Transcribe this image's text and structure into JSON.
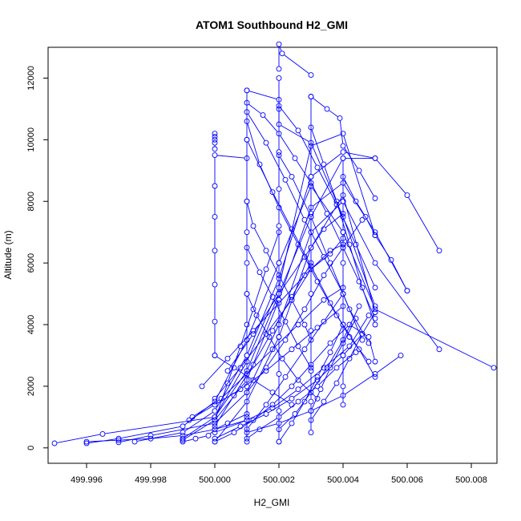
{
  "chart_data": {
    "type": "line",
    "title": "ATOM1 Southbound H2_GMI",
    "xlabel": "H2_GMI",
    "ylabel": "Altitude (m)",
    "xlim": [
      499.9948,
      500.0088
    ],
    "ylim": [
      -500,
      13000
    ],
    "x_ticks": [
      499.996,
      499.998,
      500.0,
      500.002,
      500.004,
      500.006,
      500.008
    ],
    "x_tick_labels": [
      "499.996",
      "499.998",
      "500.000",
      "500.002",
      "500.004",
      "500.006",
      "500.008"
    ],
    "y_ticks": [
      0,
      2000,
      4000,
      6000,
      8000,
      10000,
      12000
    ],
    "y_tick_labels": [
      "0",
      "2000",
      "4000",
      "6000",
      "8000",
      "10000",
      "12000"
    ],
    "grid": false,
    "line_color": "#0000ff",
    "marker": "open-circle",
    "series": [
      {
        "x": [
          499.995,
          499.9965,
          500.0,
          500.001,
          500.002,
          500.003,
          500.004,
          500.005,
          500.006,
          500.007
        ],
        "y": [
          150,
          450,
          1000,
          2500,
          5000,
          7500,
          9400,
          9400,
          8200,
          6400
        ]
      },
      {
        "x": [
          499.996,
          499.997,
          499.999,
          500.0,
          500.001,
          500.002,
          500.003,
          500.004,
          500.005,
          500.0087
        ],
        "y": [
          150,
          300,
          700,
          1500,
          3500,
          6000,
          8500,
          7000,
          4500,
          2600
        ]
      },
      {
        "x": [
          499.997,
          499.998,
          500.0,
          500.001,
          500.002,
          500.003,
          500.004,
          500.005,
          500.007
        ],
        "y": [
          180,
          400,
          800,
          1800,
          4000,
          7000,
          8000,
          6000,
          3200
        ]
      },
      {
        "x": [
          499.9975,
          499.999,
          500.0,
          500.001,
          500.002,
          500.003,
          500.004,
          500.005
        ],
        "y": [
          200,
          500,
          1200,
          3000,
          5500,
          8800,
          9600,
          9400
        ]
      },
      {
        "x": [
          499.999,
          500.0,
          500.001,
          500.002,
          500.003,
          500.004,
          500.005,
          500.006
        ],
        "y": [
          250,
          900,
          2200,
          4800,
          7800,
          8600,
          7000,
          5100
        ]
      },
      {
        "x": [
          499.999,
          500.0,
          500.001,
          500.002,
          500.003,
          500.004,
          500.005
        ],
        "y": [
          300,
          1000,
          2800,
          5200,
          9800,
          10200,
          6900
        ]
      },
      {
        "x": [
          500.0,
          500.001,
          500.002,
          500.003,
          500.004,
          500.005
        ],
        "y": [
          200,
          1500,
          3600,
          6500,
          8200,
          4400
        ]
      },
      {
        "x": [
          500.0,
          500.0,
          500.0,
          500.0,
          500.0,
          500.0,
          500.0,
          500.001
        ],
        "y": [
          3000,
          4100,
          5300,
          6400,
          7500,
          8500,
          9500,
          9400
        ]
      },
      {
        "x": [
          500.0,
          500.0,
          500.0,
          500.0,
          500.0
        ],
        "y": [
          9700,
          9900,
          10000,
          10100,
          10200
        ]
      },
      {
        "x": [
          500.001,
          500.001,
          500.001,
          500.001,
          500.001,
          500.001,
          500.001,
          500.001,
          500.001,
          500.001,
          500.001
        ],
        "y": [
          200,
          1000,
          2000,
          3000,
          4000,
          5000,
          6000,
          7000,
          8000,
          10000,
          11600
        ]
      },
      {
        "x": [
          500.001,
          500.002,
          500.002,
          500.003,
          500.004,
          500.005
        ],
        "y": [
          11600,
          11300,
          10500,
          9900,
          7500,
          4600
        ]
      },
      {
        "x": [
          500.002,
          500.002,
          500.002,
          500.002,
          500.002,
          500.002,
          500.002,
          500.002,
          500.002,
          500.002,
          500.002
        ],
        "y": [
          200,
          1200,
          2400,
          3600,
          4800,
          6000,
          7200,
          8400,
          9600,
          11000,
          12000
        ]
      },
      {
        "x": [
          500.002,
          500.002,
          500.0021,
          500.003
        ],
        "y": [
          12300,
          13100,
          12800,
          12100
        ]
      },
      {
        "x": [
          500.003,
          500.003,
          500.003,
          500.003,
          500.003,
          500.003,
          500.003,
          500.003,
          500.003
        ],
        "y": [
          500,
          1500,
          2500,
          3800,
          5000,
          6500,
          7600,
          8800,
          11400
        ]
      },
      {
        "x": [
          500.003,
          500.0035,
          500.0039,
          500.004,
          500.0045,
          500.005
        ],
        "y": [
          11400,
          11000,
          10700,
          9800,
          9000,
          8100
        ]
      },
      {
        "x": [
          500.004,
          500.004,
          500.004,
          500.004,
          500.004,
          500.004,
          500.004,
          500.004,
          500.004
        ],
        "y": [
          1400,
          2000,
          3000,
          4000,
          5000,
          6000,
          7000,
          8000,
          9400
        ]
      },
      {
        "x": [
          500.004,
          500.0044,
          500.0047,
          500.005,
          500.0055,
          500.006
        ],
        "y": [
          8800,
          8000,
          7500,
          6900,
          6100,
          5100
        ]
      },
      {
        "x": [
          500.001,
          500.0015,
          500.002,
          500.0025,
          500.003,
          500.0035,
          500.004,
          500.0045,
          500.005
        ],
        "y": [
          11200,
          10800,
          10200,
          9400,
          8600,
          7600,
          6500,
          5400,
          4200
        ]
      },
      {
        "x": [
          500.001,
          500.0016,
          500.0022,
          500.0028,
          500.0034,
          500.004,
          500.0046
        ],
        "y": [
          10900,
          9900,
          8700,
          7400,
          6200,
          5000,
          3500
        ]
      },
      {
        "x": [
          500.001,
          500.0014,
          500.002,
          500.0026,
          500.0032,
          500.0038,
          500.0045,
          500.005
        ],
        "y": [
          10600,
          9200,
          7800,
          6600,
          5400,
          4300,
          3200,
          2300
        ]
      },
      {
        "x": [
          500.001,
          500.0018,
          500.0024,
          500.003,
          500.0036,
          500.0042,
          500.0048
        ],
        "y": [
          10000,
          8300,
          7100,
          5900,
          4700,
          3600,
          2800
        ]
      },
      {
        "x": [
          500.002,
          500.0026,
          500.0032,
          500.0038,
          500.0044,
          500.005
        ],
        "y": [
          11100,
          10300,
          9100,
          7900,
          6600,
          5200
        ]
      },
      {
        "x": [
          500.002,
          500.0024,
          500.003,
          500.0036,
          500.0042,
          500.0048
        ],
        "y": [
          9500,
          8800,
          7500,
          6000,
          4500,
          3400
        ]
      },
      {
        "x": [
          500.003,
          500.0034,
          500.0038,
          500.0042,
          500.0046,
          500.005
        ],
        "y": [
          10400,
          9200,
          8000,
          6600,
          5200,
          4000
        ]
      },
      {
        "x": [
          500.0,
          500.0006,
          500.0012,
          500.0018,
          500.0024,
          500.003,
          500.0036,
          500.0042,
          500.0048,
          500.005
        ],
        "y": [
          200,
          500,
          900,
          1400,
          2000,
          2700,
          3400,
          4000,
          3600,
          2800
        ]
      },
      {
        "x": [
          500.0,
          500.0008,
          500.0016,
          500.0024,
          500.0032,
          500.004,
          500.0046
        ],
        "y": [
          300,
          700,
          1100,
          1600,
          2200,
          3000,
          3700
        ]
      },
      {
        "x": [
          500.0,
          500.001,
          500.0018,
          500.0026,
          500.0034,
          500.0042,
          500.0048
        ],
        "y": [
          500,
          900,
          1300,
          1900,
          2600,
          3300,
          4300
        ]
      },
      {
        "x": [
          500.001,
          500.0014,
          500.002,
          500.0026,
          500.0032,
          500.0038,
          500.0044
        ],
        "y": [
          300,
          600,
          1000,
          1500,
          2000,
          2600,
          3100
        ]
      },
      {
        "x": [
          500.001,
          500.002,
          500.003,
          500.004,
          500.005,
          500.0058
        ],
        "y": [
          500,
          800,
          1200,
          1700,
          2400,
          3000
        ]
      },
      {
        "x": [
          499.9992,
          500.0,
          500.0008,
          500.0016,
          500.0024,
          500.0032,
          500.004
        ],
        "y": [
          900,
          1400,
          1900,
          2500,
          3200,
          3900,
          4600
        ]
      },
      {
        "x": [
          499.9993,
          500.0002,
          500.001,
          500.0018,
          500.0026,
          500.0034,
          500.004
        ],
        "y": [
          1000,
          1600,
          2400,
          3200,
          4000,
          4800,
          5200
        ]
      },
      {
        "x": [
          499.9996,
          500.0004,
          500.0012,
          500.002,
          500.0028,
          500.0036,
          500.004
        ],
        "y": [
          2000,
          2900,
          3800,
          4700,
          5600,
          6400,
          6600
        ]
      },
      {
        "x": [
          500.0,
          500.0008,
          500.0016,
          500.0024,
          500.003,
          500.0036,
          500.004
        ],
        "y": [
          1600,
          2600,
          3700,
          4800,
          5800,
          6300,
          6800
        ]
      },
      {
        "x": [
          500.0004,
          500.0012,
          500.002,
          500.0028,
          500.0034,
          500.004
        ],
        "y": [
          2500,
          3700,
          5000,
          6200,
          7100,
          7600
        ]
      },
      {
        "x": [
          500.001,
          500.0016,
          500.0022,
          500.0028,
          500.0034,
          500.004,
          500.0046
        ],
        "y": [
          1800,
          2600,
          3500,
          4500,
          5600,
          6500,
          7400
        ]
      },
      {
        "x": [
          500.002,
          500.0024,
          500.0028,
          500.0032,
          500.0036,
          500.004
        ],
        "y": [
          200,
          800,
          1500,
          2300,
          3100,
          4000
        ]
      },
      {
        "x": [
          500.002,
          500.0025,
          500.003,
          500.0035,
          500.004,
          500.0045
        ],
        "y": [
          600,
          1100,
          1800,
          2600,
          3500,
          4600
        ]
      },
      {
        "x": [
          500.003,
          500.0034,
          500.0038,
          500.0042,
          500.0046,
          500.005
        ],
        "y": [
          900,
          1500,
          2100,
          2900,
          3700,
          4400
        ]
      },
      {
        "x": [
          500.003,
          500.0033,
          500.0036,
          500.004,
          500.0044
        ],
        "y": [
          1200,
          1900,
          2600,
          3400,
          4200
        ]
      },
      {
        "x": [
          500.001,
          500.0012,
          500.0016,
          500.002,
          500.0024,
          500.0028,
          500.003
        ],
        "y": [
          8000,
          7200,
          6400,
          5600,
          4800,
          4000,
          3500
        ]
      },
      {
        "x": [
          500.001,
          500.0014,
          500.0018,
          500.0022,
          500.0026,
          500.003
        ],
        "y": [
          6500,
          5700,
          4900,
          4100,
          3300,
          2600
        ]
      },
      {
        "x": [
          500.001,
          500.0013,
          500.0017,
          500.0021,
          500.0026,
          500.0032
        ],
        "y": [
          5000,
          4300,
          3600,
          2900,
          2200,
          1600
        ]
      },
      {
        "x": [
          500.0,
          500.0006,
          500.0012,
          500.0018,
          500.0024
        ],
        "y": [
          3000,
          2600,
          2200,
          1800,
          1400
        ]
      },
      {
        "x": [
          500.002,
          500.0016,
          500.0012,
          500.0008,
          500.0004,
          500.0
        ],
        "y": [
          7000,
          5800,
          4500,
          3300,
          2100,
          900
        ]
      },
      {
        "x": [
          500.003,
          500.0024,
          500.0018,
          500.0012,
          500.0006,
          500.0
        ],
        "y": [
          6000,
          4900,
          3800,
          2700,
          1700,
          700
        ]
      },
      {
        "x": [
          500.004,
          500.0034,
          500.0028,
          500.0022,
          500.0016,
          500.001
        ],
        "y": [
          5000,
          4100,
          3200,
          2300,
          1400,
          600
        ]
      },
      {
        "x": [
          499.999,
          499.9994,
          499.9998,
          500.0,
          500.0004,
          500.001
        ],
        "y": [
          200,
          300,
          400,
          600,
          800,
          1100
        ]
      },
      {
        "x": [
          499.996,
          499.997,
          499.998,
          499.999,
          500.0,
          500.001
        ],
        "y": [
          200,
          250,
          300,
          400,
          600,
          900
        ]
      }
    ]
  }
}
